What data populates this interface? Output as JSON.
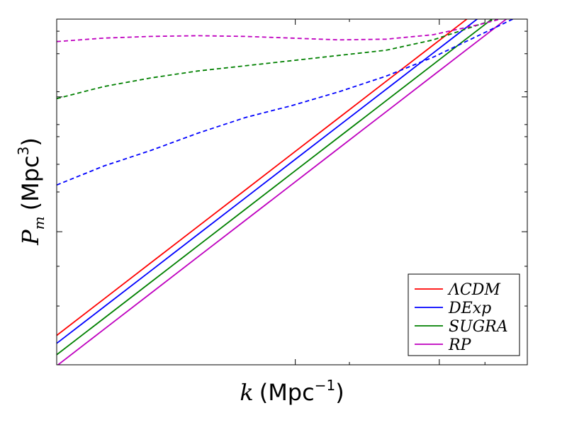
{
  "chart_data": {
    "type": "line",
    "xlabel": {
      "symbol": "k",
      "unit": "Mpc",
      "exponent": "−1"
    },
    "ylabel": {
      "symbol": "P",
      "subscript": "m",
      "unit": "Mpc",
      "exponent": "3"
    },
    "xscale": "log",
    "yscale": "log",
    "tick_labels_shown": false,
    "legend": {
      "position": "bottom-right",
      "entries": [
        "ΛCDM",
        "DExp",
        "SUGRA",
        "RP"
      ]
    },
    "x": [
      0,
      0.1,
      0.2,
      0.3,
      0.4,
      0.5,
      0.6,
      0.7,
      0.8,
      0.9,
      1.0
    ],
    "series": [
      {
        "name": "ΛCDM",
        "color": "#ff0000",
        "style": "solid",
        "values": [
          0.085,
          0.19,
          0.295,
          0.4,
          0.505,
          0.61,
          0.715,
          0.82,
          0.925,
          1.03,
          1.135
        ]
      },
      {
        "name": "DExp",
        "color": "#0000ff",
        "style": "solid",
        "values": [
          0.062,
          0.167,
          0.272,
          0.377,
          0.482,
          0.587,
          0.692,
          0.797,
          0.902,
          1.007,
          1.112
        ]
      },
      {
        "name": "SUGRA",
        "color": "#008000",
        "style": "solid",
        "values": [
          0.029,
          0.134,
          0.239,
          0.344,
          0.449,
          0.554,
          0.659,
          0.764,
          0.869,
          0.974,
          1.079
        ]
      },
      {
        "name": "RP",
        "color": "#bf00bf",
        "style": "solid",
        "values": [
          -0.003,
          0.102,
          0.207,
          0.312,
          0.417,
          0.522,
          0.627,
          0.732,
          0.837,
          0.942,
          1.047
        ]
      },
      {
        "name": "DExp",
        "color": "#0000ff",
        "style": "dashed",
        "values": [
          0.52,
          0.575,
          0.62,
          0.67,
          0.715,
          0.75,
          0.79,
          0.835,
          0.89,
          0.955,
          1.02
        ]
      },
      {
        "name": "SUGRA",
        "color": "#008000",
        "style": "dashed",
        "values": [
          0.77,
          0.805,
          0.83,
          0.85,
          0.865,
          0.88,
          0.895,
          0.91,
          0.94,
          0.985,
          1.03
        ]
      },
      {
        "name": "RP",
        "color": "#bf00bf",
        "style": "dashed",
        "values": [
          0.935,
          0.945,
          0.95,
          0.952,
          0.95,
          0.945,
          0.94,
          0.942,
          0.955,
          0.985,
          1.02
        ]
      }
    ],
    "xlim": [
      0,
      1
    ],
    "ylim": [
      0,
      1
    ]
  }
}
